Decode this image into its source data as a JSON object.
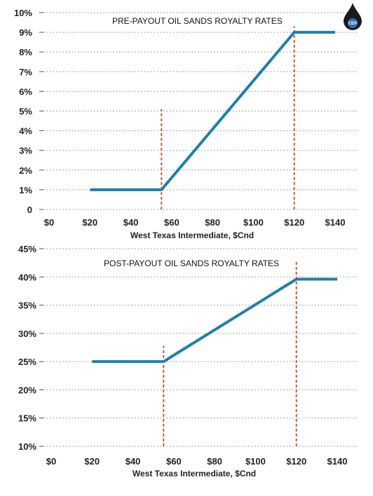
{
  "logo": {
    "text": "CEP"
  },
  "colors": {
    "line": "#1f7fab",
    "marker": "#d9542b",
    "grid": "#888888"
  },
  "chart_data": [
    {
      "type": "line",
      "title": "PRE-PAYOUT OIL SANDS ROYALTY RATES",
      "xlabel": "West Texas Intermediate, $Cnd",
      "ylabel": "",
      "x_tick_labels": [
        "$0",
        "$20",
        "$40",
        "$60",
        "$80",
        "$100",
        "$120",
        "$140"
      ],
      "y_tick_labels": [
        "0",
        "1%",
        "2%",
        "3%",
        "4%",
        "5%",
        "6%",
        "7%",
        "8%",
        "9%",
        "10%"
      ],
      "xlim": [
        0,
        145
      ],
      "ylim": [
        0,
        10
      ],
      "grid": "horizontal dotted",
      "series": [
        {
          "x": [
            20,
            55,
            120,
            140
          ],
          "y": [
            1,
            1,
            9,
            9
          ]
        }
      ],
      "reference_lines": [
        {
          "x": 55,
          "y_top": 5.1
        },
        {
          "x": 120,
          "y_top": 9.3
        }
      ]
    },
    {
      "type": "line",
      "title": "POST-PAYOUT OIL SANDS ROYALTY RATES",
      "xlabel": "West Texas Intermediate, $Cnd",
      "ylabel": "",
      "x_tick_labels": [
        "$0",
        "$20",
        "$40",
        "$60",
        "$80",
        "$100",
        "$120",
        "$140"
      ],
      "y_tick_labels": [
        "10%",
        "15%",
        "20%",
        "25%",
        "30%",
        "35%",
        "40%",
        "45%"
      ],
      "xlim": [
        0,
        145
      ],
      "ylim": [
        10,
        45
      ],
      "grid": "horizontal dotted",
      "series": [
        {
          "x": [
            20,
            55,
            120,
            140
          ],
          "y": [
            25,
            25,
            39.6,
            39.6
          ]
        }
      ],
      "reference_lines": [
        {
          "x": 55,
          "y_top": 27.8
        },
        {
          "x": 120,
          "y_top": 42.8
        }
      ]
    }
  ]
}
